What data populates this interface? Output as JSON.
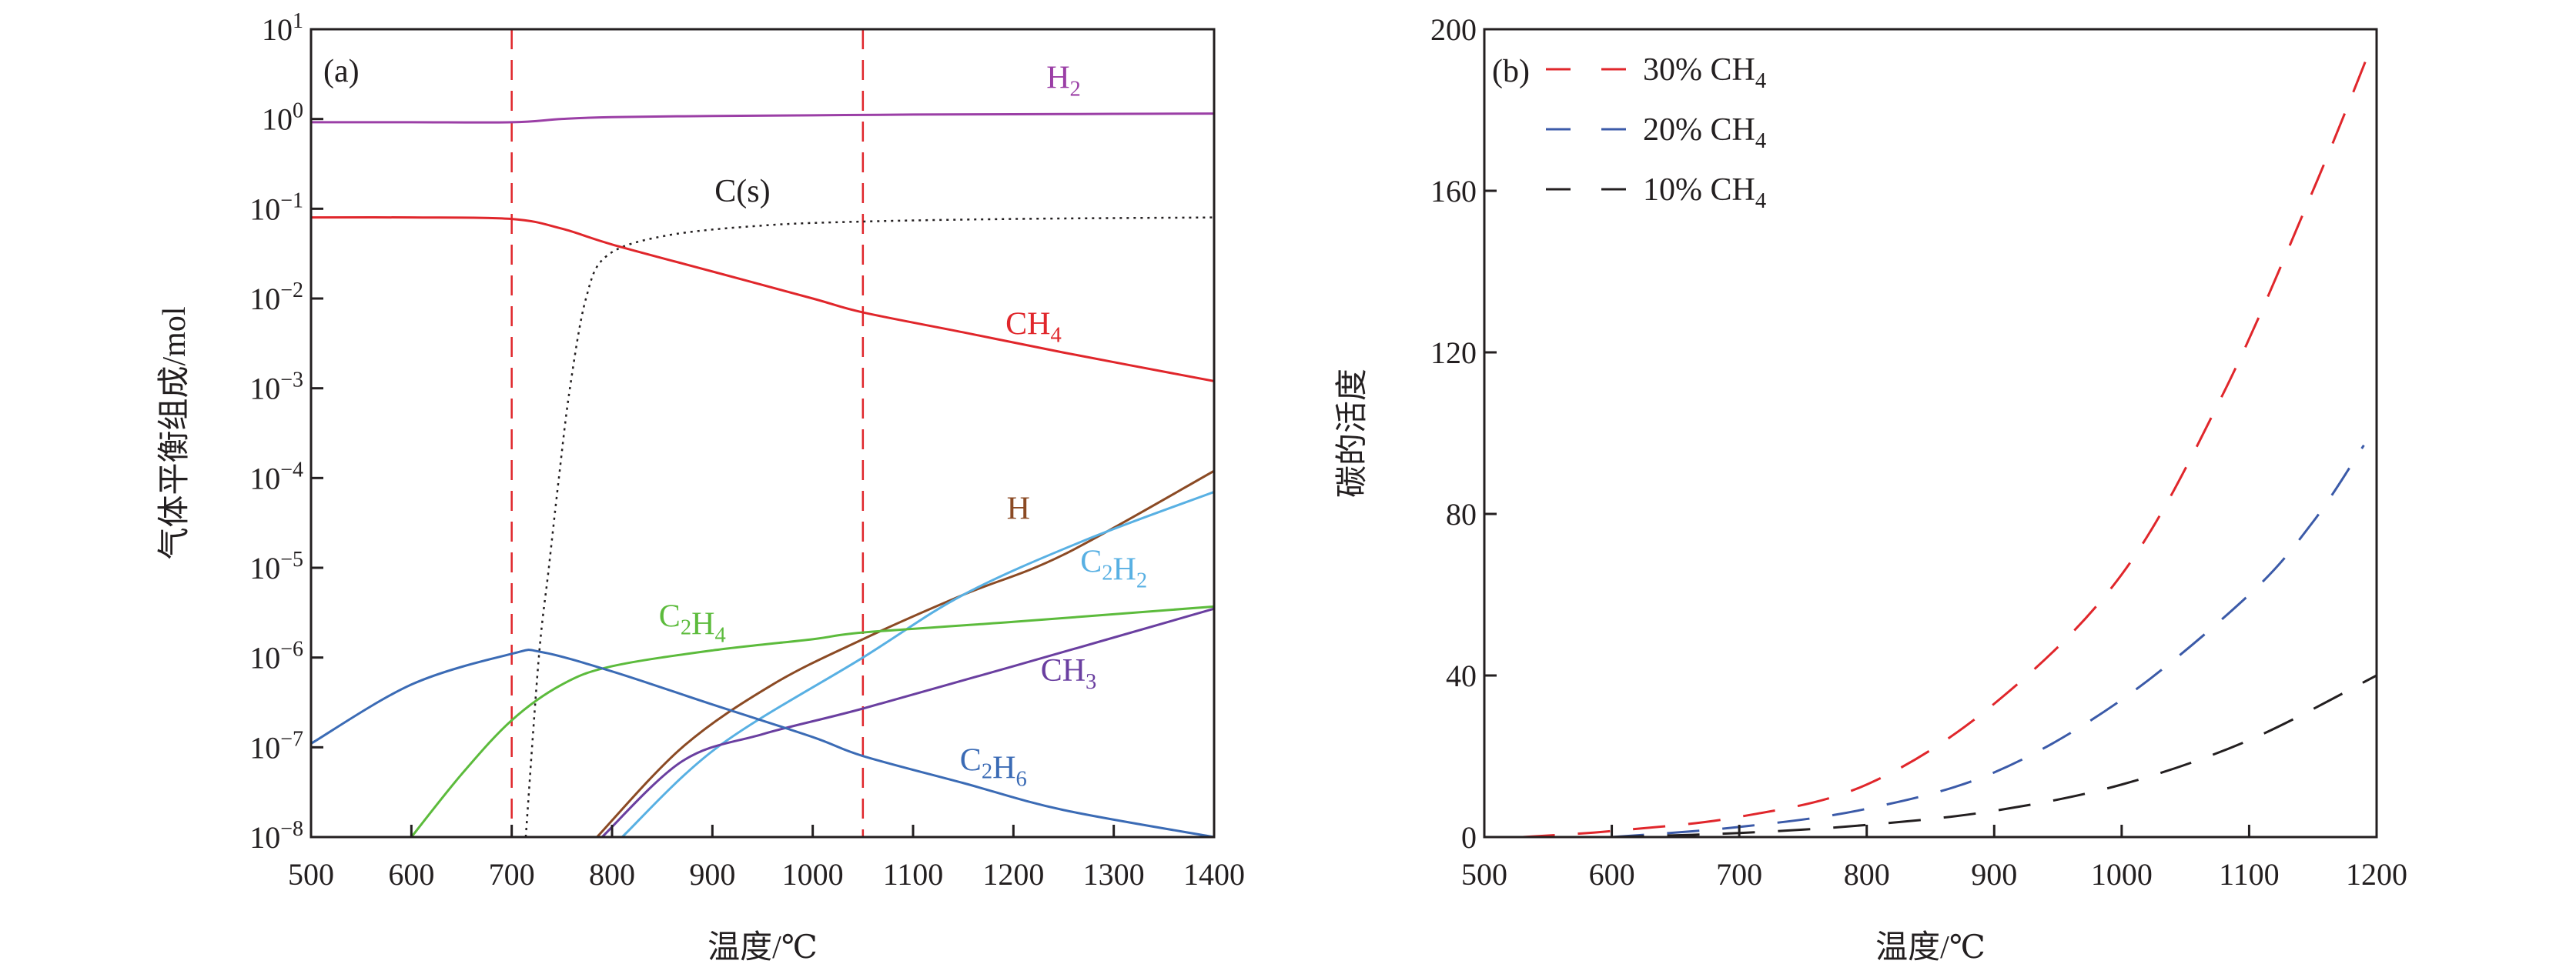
{
  "chart_data": [
    {
      "type": "line",
      "panel_label": "(a)",
      "xlabel": "温度/℃",
      "ylabel": "气体平衡组成/mol",
      "xlim": [
        500,
        1400
      ],
      "ylim": [
        1e-08,
        10
      ],
      "yscale": "log",
      "xticks": [
        500,
        600,
        700,
        800,
        900,
        1000,
        1100,
        1200,
        1300,
        1400
      ],
      "yticks_exp": [
        -8,
        -7,
        -6,
        -5,
        -4,
        -3,
        -2,
        -1,
        0,
        1
      ],
      "grid": false,
      "reference_lines": [
        {
          "x": 700,
          "color": "#e0262b",
          "style": "dashed"
        },
        {
          "x": 1050,
          "color": "#e0262b",
          "style": "dashed"
        }
      ],
      "series": [
        {
          "name": "H2",
          "color": "#9b3fa6",
          "style": "solid",
          "x": [
            500,
            600,
            700,
            750,
            800,
            900,
            1000,
            1100,
            1200,
            1300,
            1400
          ],
          "y": [
            0.92,
            0.92,
            0.92,
            1.0,
            1.05,
            1.08,
            1.1,
            1.12,
            1.13,
            1.14,
            1.15
          ]
        },
        {
          "name": "C(s)",
          "color": "#231f20",
          "style": "dotted",
          "x": [
            714,
            727,
            737,
            747,
            758,
            774,
            795,
            853,
            950,
            1050,
            1200,
            1400
          ],
          "y": [
            1e-08,
            1e-06,
            1e-05,
            0.0001,
            0.001,
            0.01,
            0.03,
            0.05,
            0.065,
            0.072,
            0.077,
            0.08
          ]
        },
        {
          "name": "CH4",
          "color": "#e0262b",
          "style": "solid",
          "x": [
            500,
            600,
            700,
            750,
            800,
            900,
            1000,
            1050,
            1150,
            1250,
            1400
          ],
          "y": [
            0.08,
            0.08,
            0.077,
            0.06,
            0.04,
            0.02,
            0.01,
            0.007,
            0.0042,
            0.0025,
            0.0012
          ]
        },
        {
          "name": "H",
          "color": "#8b4a24",
          "style": "solid",
          "x": [
            785,
            870,
            960,
            1050,
            1150,
            1250,
            1400
          ],
          "y": [
            1e-08,
            1e-07,
            5e-07,
            1.6e-06,
            5e-06,
            1.4e-05,
            0.00012
          ]
        },
        {
          "name": "C2H2",
          "color": "#58b0e3",
          "style": "solid",
          "x": [
            810,
            905,
            1050,
            1150,
            1270,
            1400
          ],
          "y": [
            1e-08,
            1e-07,
            1e-06,
            5e-06,
            2e-05,
            7e-05
          ]
        },
        {
          "name": "C2H4",
          "color": "#5cbb3c",
          "style": "solid",
          "x": [
            600,
            650,
            700,
            750,
            800,
            900,
            1000,
            1050,
            1200,
            1400
          ],
          "y": [
            1e-08,
            5e-08,
            2e-07,
            5e-07,
            8e-07,
            1.2e-06,
            1.6e-06,
            1.9e-06,
            2.5e-06,
            3.7e-06
          ]
        },
        {
          "name": "CH3",
          "color": "#6a3fa0",
          "style": "solid",
          "x": [
            790,
            870,
            950,
            1050,
            1200,
            1400
          ],
          "y": [
            1e-08,
            7e-08,
            1.4e-07,
            2.7e-07,
            8e-07,
            3.5e-06
          ]
        },
        {
          "name": "C2H6",
          "color": "#3b6bb5",
          "style": "solid",
          "x": [
            500,
            600,
            700,
            730,
            800,
            900,
            1000,
            1050,
            1150,
            1250,
            1400
          ],
          "y": [
            1.1e-07,
            5e-07,
            1.1e-06,
            1.15e-06,
            7e-07,
            3e-07,
            1.3e-07,
            8e-08,
            4e-08,
            2e-08,
            1e-08
          ]
        }
      ]
    },
    {
      "type": "line",
      "panel_label": "(b)",
      "xlabel": "温度/℃",
      "ylabel": "碳的活度",
      "xlim": [
        500,
        1200
      ],
      "ylim": [
        0,
        200
      ],
      "xticks": [
        500,
        600,
        700,
        800,
        900,
        1000,
        1100,
        1200
      ],
      "yticks": [
        0,
        40,
        80,
        120,
        160,
        200
      ],
      "grid": false,
      "legend_position": "top-left",
      "series": [
        {
          "name": "30% CH4",
          "color": "#e0262b",
          "style": "dashed",
          "x": [
            530,
            600,
            700,
            800,
            900,
            1000,
            1080,
            1150,
            1195
          ],
          "y": [
            0,
            1.5,
            5,
            13,
            33,
            65,
            110,
            160,
            195
          ]
        },
        {
          "name": "20% CH4",
          "color": "#3b5aa8",
          "style": "dashed",
          "x": [
            600,
            700,
            800,
            900,
            1000,
            1100,
            1150,
            1190
          ],
          "y": [
            0,
            2.5,
            7,
            16,
            34,
            60,
            78,
            97
          ]
        },
        {
          "name": "10% CH4",
          "color": "#231f20",
          "style": "dashed",
          "x": [
            600,
            700,
            800,
            900,
            1000,
            1100,
            1200
          ],
          "y": [
            0,
            1,
            3,
            6.5,
            13,
            24,
            40
          ]
        }
      ]
    }
  ]
}
